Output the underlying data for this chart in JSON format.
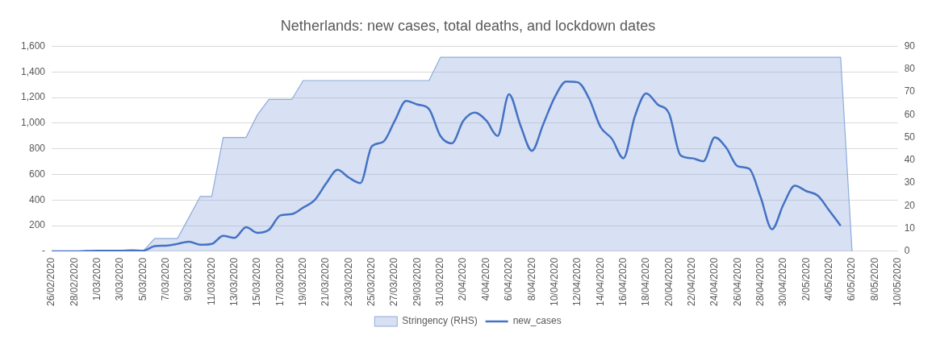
{
  "chart_data": {
    "type": "line",
    "title": "Netherlands: new cases, total deaths, and lockdown dates",
    "categories": [
      "26/02/2020",
      null,
      "28/02/2020",
      null,
      "1/03/2020",
      null,
      "3/03/2020",
      null,
      "5/03/2020",
      null,
      "7/03/2020",
      null,
      "9/03/2020",
      null,
      "11/03/2020",
      null,
      "13/03/2020",
      null,
      "15/03/2020",
      null,
      "17/03/2020",
      null,
      "19/03/2020",
      null,
      "21/03/2020",
      null,
      "23/03/2020",
      null,
      "25/03/2020",
      null,
      "27/03/2020",
      null,
      "29/03/2020",
      null,
      "31/03/2020",
      null,
      "2/04/2020",
      null,
      "4/04/2020",
      null,
      "6/04/2020",
      null,
      "8/04/2020",
      null,
      "10/04/2020",
      null,
      "12/04/2020",
      null,
      "14/04/2020",
      null,
      "16/04/2020",
      null,
      "18/04/2020",
      null,
      "20/04/2020",
      null,
      "22/04/2020",
      null,
      "24/04/2020",
      null,
      "26/04/2020",
      null,
      "28/04/2020",
      null,
      "30/04/2020",
      null,
      "2/05/2020",
      null,
      "4/05/2020",
      null,
      "6/05/2020",
      null,
      "8/05/2020",
      null,
      "10/05/2020"
    ],
    "series": [
      {
        "name": "Stringency (RHS)",
        "type": "area",
        "axis": "y2",
        "color": "#8faadc",
        "values": [
          0,
          0,
          0,
          0,
          0,
          0,
          0,
          0,
          0,
          5.6,
          5.6,
          5.6,
          14.8,
          24.1,
          24.1,
          50,
          50,
          50,
          60,
          66.7,
          66.7,
          66.7,
          75,
          75,
          75,
          75,
          75,
          75,
          75,
          75,
          75,
          75,
          75,
          75,
          85.2,
          85.2,
          85.2,
          85.2,
          85.2,
          85.2,
          85.2,
          85.2,
          85.2,
          85.2,
          85.2,
          85.2,
          85.2,
          85.2,
          85.2,
          85.2,
          85.2,
          85.2,
          85.2,
          85.2,
          85.2,
          85.2,
          85.2,
          85.2,
          85.2,
          85.2,
          85.2,
          85.2,
          85.2,
          85.2,
          85.2,
          85.2,
          85.2,
          85.2,
          85.2,
          85.2,
          0,
          null,
          null,
          null,
          null
        ]
      },
      {
        "name": "new_cases",
        "type": "line",
        "color": "#4472c4",
        "values": [
          0,
          0,
          0,
          2,
          5,
          5,
          5,
          8,
          5,
          40,
          44,
          58,
          75,
          51,
          58,
          121,
          105,
          189,
          145,
          168,
          280,
          291,
          342,
          400,
          529,
          636,
          575,
          533,
          820,
          855,
          1018,
          1174,
          1146,
          1111,
          901,
          843,
          1018,
          1083,
          1022,
          901,
          1227,
          983,
          785,
          994,
          1204,
          1325,
          1320,
          1193,
          971,
          878,
          727,
          1053,
          1232,
          1146,
          1076,
          750,
          727,
          703,
          889,
          808,
          664,
          645,
          424,
          172,
          366,
          512,
          470,
          435,
          319,
          200,
          null,
          null,
          null,
          null,
          null
        ]
      }
    ],
    "ylim": [
      0,
      1600
    ],
    "yticks": [
      {
        "value": 0,
        "label": "-"
      },
      {
        "value": 200,
        "label": "200"
      },
      {
        "value": 400,
        "label": "400"
      },
      {
        "value": 600,
        "label": "600"
      },
      {
        "value": 800,
        "label": "800"
      },
      {
        "value": 1000,
        "label": "1,000"
      },
      {
        "value": 1200,
        "label": "1,200"
      },
      {
        "value": 1400,
        "label": "1,400"
      },
      {
        "value": 1600,
        "label": "1,600"
      }
    ],
    "y2lim": [
      0,
      90
    ],
    "y2ticks": [
      0,
      10,
      20,
      30,
      40,
      50,
      60,
      70,
      80,
      90
    ],
    "grid": "y",
    "legend": "bottom",
    "marker": "none",
    "line_style": "solid"
  }
}
